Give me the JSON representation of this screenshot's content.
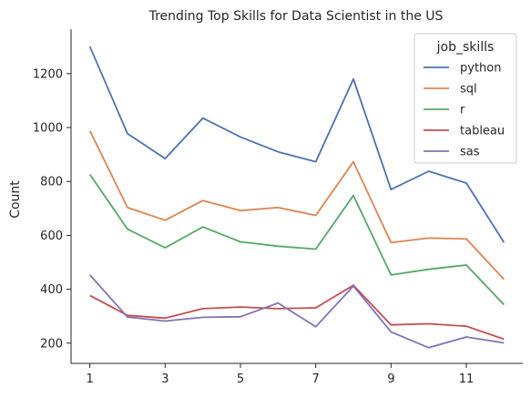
{
  "chart_data": {
    "type": "line",
    "title": "Trending Top Skills for Data Scientist in the US",
    "xlabel": "",
    "ylabel": "Count",
    "x": [
      1,
      2,
      3,
      4,
      5,
      6,
      7,
      8,
      9,
      10,
      11,
      12
    ],
    "xticks": [
      1,
      3,
      5,
      7,
      9,
      11
    ],
    "yticks": [
      200,
      400,
      600,
      800,
      1000,
      1200
    ],
    "xlim": [
      0.5,
      12.5
    ],
    "ylim": [
      125,
      1365
    ],
    "grid": false,
    "legend": {
      "title": "job_skills",
      "position": "top-right"
    },
    "series": [
      {
        "name": "python",
        "color": "#4c72b0",
        "values": [
          1300,
          977,
          885,
          1035,
          965,
          910,
          873,
          1180,
          770,
          838,
          794,
          574
        ]
      },
      {
        "name": "sql",
        "color": "#dd8452",
        "values": [
          988,
          703,
          656,
          729,
          692,
          703,
          674,
          873,
          573,
          590,
          587,
          437
        ]
      },
      {
        "name": "r",
        "color": "#55a868",
        "values": [
          826,
          623,
          554,
          631,
          576,
          560,
          549,
          748,
          453,
          474,
          490,
          343
        ]
      },
      {
        "name": "tableau",
        "color": "#c44e52",
        "values": [
          377,
          303,
          293,
          328,
          334,
          328,
          331,
          415,
          268,
          272,
          263,
          215
        ]
      },
      {
        "name": "sas",
        "color": "#8172b3",
        "values": [
          453,
          297,
          282,
          296,
          298,
          349,
          261,
          412,
          242,
          183,
          223,
          201
        ]
      }
    ]
  }
}
